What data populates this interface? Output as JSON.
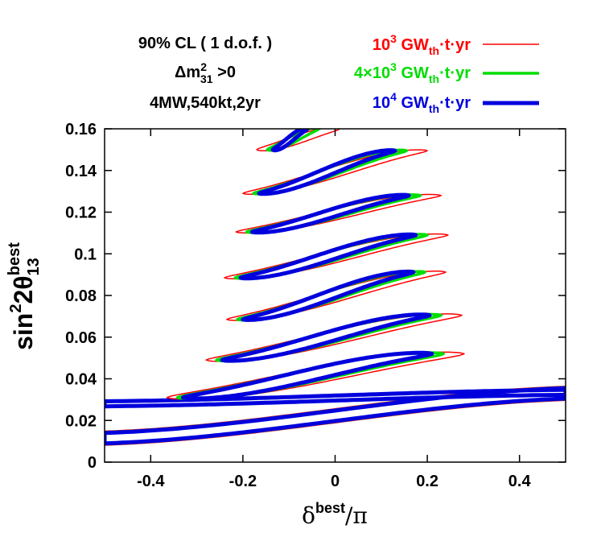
{
  "chart_data": {
    "type": "line",
    "xlabel": {
      "base": "δ",
      "sup": "best",
      "suffix": "/π"
    },
    "ylabel": {
      "base": "sin",
      "sup1": "2",
      "mid": "2θ",
      "sub": "13",
      "sup2": "best"
    },
    "xlim": [
      -0.5,
      0.5
    ],
    "ylim": [
      0,
      0.16
    ],
    "xticks": [
      -0.4,
      -0.2,
      0,
      0.2,
      0.4
    ],
    "xtick_labels": [
      "-0.4",
      "-0.2",
      "0",
      "0.2",
      "0.4"
    ],
    "yticks": [
      0,
      0.02,
      0.04,
      0.06,
      0.08,
      0.1,
      0.12,
      0.14,
      0.16
    ],
    "ytick_labels": [
      "0",
      "0.02",
      "0.04",
      "0.06",
      "0.08",
      "0.1",
      "0.12",
      "0.14",
      "0.16"
    ],
    "annotations": {
      "line1": "90% CL ( 1 d.o.f. )",
      "line2": {
        "pre": "Δm",
        "sup": "2",
        "sub": "31",
        "post": " >0"
      },
      "line3": "4MW,540kt,2yr"
    },
    "legend_position": "top-right",
    "series": [
      {
        "name": {
          "pre": "10",
          "sup": "3",
          "mid": " GW",
          "sub": "th",
          "post": "·t·yr"
        },
        "color": "#ff0000",
        "line_width": 1.5
      },
      {
        "name": {
          "pre": "4×10",
          "sup": "3",
          "mid": " GW",
          "sub": "th",
          "post": "·t·yr"
        },
        "color": "#00dd00",
        "line_width": 3.5
      },
      {
        "name": {
          "pre": "10",
          "sup": "4",
          "mid": " GW",
          "sub": "th",
          "post": "·t·yr"
        },
        "color": "#0000dd",
        "line_width": 5
      }
    ],
    "contours": [
      {
        "y_best": 0.01,
        "d_start": -0.5,
        "d_end": 0.5,
        "y_left": 0.0115,
        "y_right": 0.033,
        "width": 0.0025,
        "open": true
      },
      {
        "y_best": 0.03,
        "d_start": -0.5,
        "d_end": 0.5,
        "y_left": 0.028,
        "y_right": 0.0335,
        "width": 0.0012,
        "open": true
      },
      {
        "y_best": 0.05,
        "d_start": -0.33,
        "d_end": 0.21,
        "y_left": 0.031,
        "y_right": 0.052,
        "width": 0.0028
      },
      {
        "y_best": 0.07,
        "d_start": -0.245,
        "d_end": 0.205,
        "y_left": 0.049,
        "y_right": 0.0705,
        "width": 0.0025
      },
      {
        "y_best": 0.09,
        "d_start": -0.2,
        "d_end": 0.17,
        "y_left": 0.0685,
        "y_right": 0.0912,
        "width": 0.0022
      },
      {
        "y_best": 0.11,
        "d_start": -0.205,
        "d_end": 0.175,
        "y_left": 0.0885,
        "y_right": 0.109,
        "width": 0.0022
      },
      {
        "y_best": 0.13,
        "d_start": -0.18,
        "d_end": 0.16,
        "y_left": 0.1105,
        "y_right": 0.128,
        "width": 0.002
      },
      {
        "y_best": 0.15,
        "d_start": -0.165,
        "d_end": 0.13,
        "y_left": 0.129,
        "y_right": 0.1495,
        "width": 0.002
      },
      {
        "y_best": 0.17,
        "d_start": -0.135,
        "d_end": -0.06,
        "y_left": 0.15,
        "y_right": 0.16,
        "width": 0.0016,
        "partial": true
      }
    ]
  }
}
